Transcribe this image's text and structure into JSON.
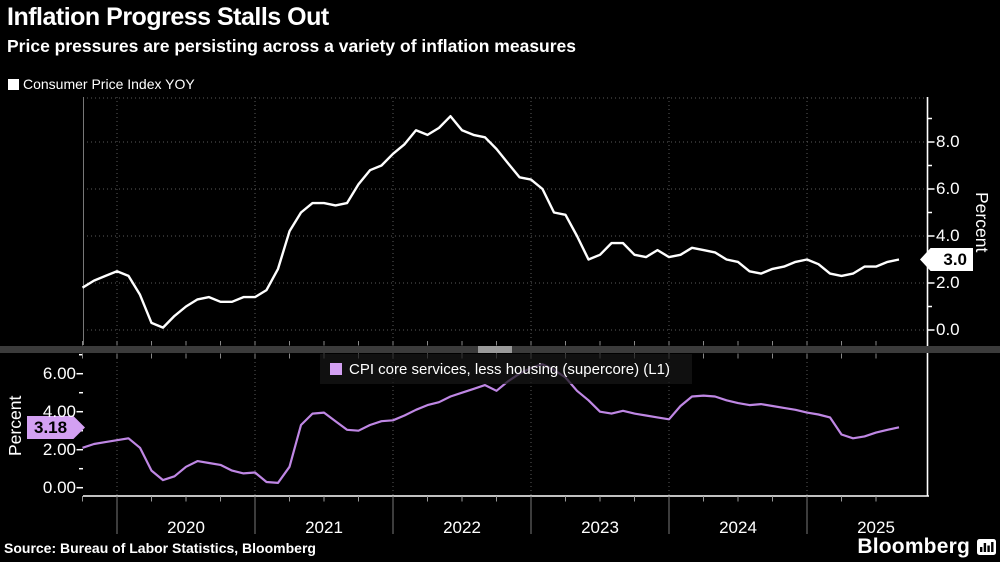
{
  "header": {
    "title": "Inflation Progress Stalls Out",
    "subtitle": "Price pressures are persisting across a variety of inflation measures"
  },
  "x_axis": {
    "year_labels": [
      "2020",
      "2021",
      "2022",
      "2023",
      "2024",
      "2025"
    ],
    "start": "2019-10",
    "end": "2025-09",
    "frequency": "monthly"
  },
  "footer": {
    "source": "Source: Bureau of Labor Statistics, Bloomberg",
    "brand": "Bloomberg"
  },
  "colors": {
    "background": "#000000",
    "cpi_line": "#ffffff",
    "supercore_line": "#bf87e4",
    "supercore_badge": "#d3a0f2",
    "grid": "#5a5a5a",
    "separator": "#3b3b3b"
  },
  "chart_data": [
    {
      "type": "line",
      "panel": "top",
      "name": "Consumer Price Index YOY",
      "color": "#ffffff",
      "axis_side": "right",
      "axis_title": "Percent",
      "ylim": [
        -0.64,
        9.9
      ],
      "y_ticks": [
        0,
        2,
        4,
        6,
        8
      ],
      "y_tick_labels": [
        "0.0",
        "2.0",
        "4.0",
        "6.0",
        "8.0"
      ],
      "minor_tick_step": 1,
      "last_label": "3.0",
      "x_start": "2019-10",
      "values": [
        1.8,
        2.1,
        2.3,
        2.5,
        2.3,
        1.5,
        0.3,
        0.1,
        0.6,
        1.0,
        1.3,
        1.4,
        1.2,
        1.2,
        1.4,
        1.4,
        1.7,
        2.6,
        4.2,
        5.0,
        5.4,
        5.4,
        5.3,
        5.4,
        6.2,
        6.8,
        7.0,
        7.5,
        7.9,
        8.5,
        8.3,
        8.6,
        9.1,
        8.5,
        8.3,
        8.2,
        7.7,
        7.1,
        6.5,
        6.4,
        6.0,
        5.0,
        4.9,
        4.0,
        3.0,
        3.2,
        3.7,
        3.7,
        3.2,
        3.1,
        3.4,
        3.1,
        3.2,
        3.5,
        3.4,
        3.3,
        3.0,
        2.9,
        2.5,
        2.4,
        2.6,
        2.7,
        2.9,
        3.0,
        2.8,
        2.4,
        2.3,
        2.4,
        2.7,
        2.7,
        2.9,
        3.0
      ]
    },
    {
      "type": "line",
      "panel": "bottom",
      "name": "CPI core services, less housing (supercore) (L1)",
      "color": "#bf87e4",
      "axis_side": "left",
      "axis_title": "Percent",
      "ylim": [
        -0.44,
        7.04
      ],
      "y_ticks": [
        0,
        2,
        4,
        6
      ],
      "y_tick_labels": [
        "0.00",
        "2.00",
        "4.00",
        "6.00"
      ],
      "minor_tick_step": 1,
      "last_label": "3.18",
      "x_start": "2019-10",
      "values": [
        2.1,
        2.3,
        2.4,
        2.5,
        2.6,
        2.1,
        0.9,
        0.4,
        0.6,
        1.1,
        1.4,
        1.3,
        1.2,
        0.9,
        0.75,
        0.8,
        0.3,
        0.25,
        1.1,
        3.3,
        3.9,
        3.95,
        3.5,
        3.05,
        3.0,
        3.3,
        3.5,
        3.55,
        3.8,
        4.1,
        4.35,
        4.5,
        4.8,
        5.0,
        5.2,
        5.4,
        5.1,
        5.6,
        6.0,
        6.3,
        6.5,
        6.2,
        5.8,
        5.1,
        4.6,
        4.0,
        3.9,
        4.05,
        3.9,
        3.8,
        3.7,
        3.6,
        4.3,
        4.8,
        4.85,
        4.8,
        4.6,
        4.45,
        4.35,
        4.4,
        4.3,
        4.2,
        4.1,
        3.95,
        3.85,
        3.7,
        2.8,
        2.6,
        2.7,
        2.9,
        3.05,
        3.18
      ]
    }
  ]
}
